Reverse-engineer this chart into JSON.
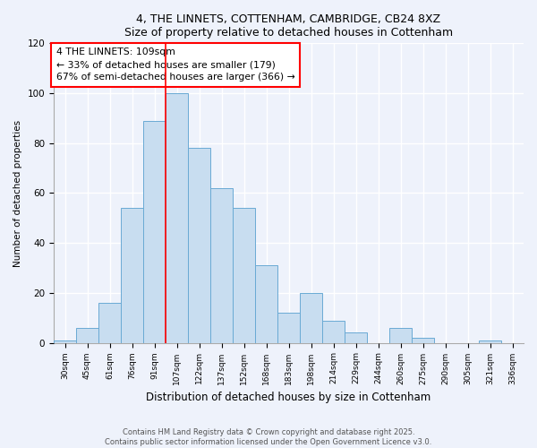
{
  "title1": "4, THE LINNETS, COTTENHAM, CAMBRIDGE, CB24 8XZ",
  "title2": "Size of property relative to detached houses in Cottenham",
  "xlabel": "Distribution of detached houses by size in Cottenham",
  "ylabel": "Number of detached properties",
  "bin_labels": [
    "30sqm",
    "45sqm",
    "61sqm",
    "76sqm",
    "91sqm",
    "107sqm",
    "122sqm",
    "137sqm",
    "152sqm",
    "168sqm",
    "183sqm",
    "198sqm",
    "214sqm",
    "229sqm",
    "244sqm",
    "260sqm",
    "275sqm",
    "290sqm",
    "305sqm",
    "321sqm",
    "336sqm"
  ],
  "bar_heights": [
    1,
    6,
    16,
    54,
    89,
    100,
    78,
    62,
    54,
    31,
    12,
    20,
    9,
    4,
    0,
    6,
    2,
    0,
    0,
    1,
    0
  ],
  "bar_color": "#c8ddf0",
  "bar_edge_color": "#6aaad4",
  "ref_line_index": 5,
  "annotation_title": "4 THE LINNETS: 109sqm",
  "annotation_line1": "← 33% of detached houses are smaller (179)",
  "annotation_line2": "67% of semi-detached houses are larger (366) →",
  "ylim": [
    0,
    120
  ],
  "yticks": [
    0,
    20,
    40,
    60,
    80,
    100,
    120
  ],
  "footer1": "Contains HM Land Registry data © Crown copyright and database right 2025.",
  "footer2": "Contains public sector information licensed under the Open Government Licence v3.0.",
  "bg_color": "#eef2fb",
  "grid_color": "#ffffff"
}
